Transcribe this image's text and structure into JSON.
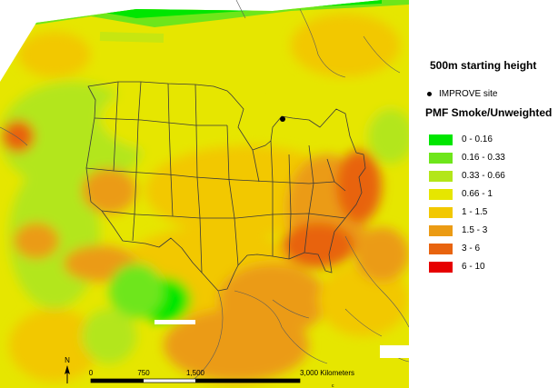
{
  "map": {
    "scale_ticks": [
      "0",
      "750",
      "1,500",
      "3,000 Kilometers"
    ],
    "north_label": "N",
    "corner_mark": "c"
  },
  "legend": {
    "title": "500m starting height",
    "site_label": "IMPROVE site",
    "subtitle": "PMF Smoke/Unweighted",
    "classes": [
      {
        "label": "0 - 0.16",
        "color": "#00e600"
      },
      {
        "label": "0.16 - 0.33",
        "color": "#6ee61a"
      },
      {
        "label": "0.33 - 0.66",
        "color": "#b3e61a"
      },
      {
        "label": "0.66 - 1",
        "color": "#e6e600"
      },
      {
        "label": "1 - 1.5",
        "color": "#f2c800"
      },
      {
        "label": "1.5 - 3",
        "color": "#eb9b14"
      },
      {
        "label": "3 - 6",
        "color": "#e8640f"
      },
      {
        "label": "6 - 10",
        "color": "#e60000"
      }
    ]
  }
}
